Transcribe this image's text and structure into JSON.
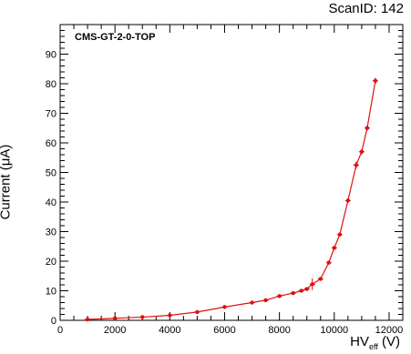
{
  "header": {
    "scan_id": "ScanID: 142"
  },
  "chart_data": {
    "type": "line",
    "title": "",
    "series_label": "CMS-GT-2-0-TOP",
    "xlabel_main": "HV",
    "xlabel_sub": "eff",
    "xlabel_unit": " (V)",
    "ylabel": "Current (μA)",
    "xlim": [
      0,
      12500
    ],
    "ylim": [
      0,
      100
    ],
    "x_ticks": [
      0,
      2000,
      4000,
      6000,
      8000,
      10000,
      12000
    ],
    "y_ticks": [
      0,
      10,
      20,
      30,
      40,
      50,
      60,
      70,
      80,
      90
    ],
    "grid": false,
    "color": "#e01010",
    "series": [
      {
        "x": [
          1000,
          2000,
          3000,
          4000,
          5000,
          6000,
          7000,
          7500,
          8000,
          8500,
          8800,
          9000,
          9200,
          9500,
          9800,
          10000,
          10200,
          10500,
          10800,
          11000,
          11200,
          11500
        ],
        "y": [
          0.3,
          0.7,
          1.1,
          1.7,
          2.8,
          4.5,
          6.0,
          6.8,
          8.2,
          9.2,
          10.0,
          10.6,
          12.2,
          14.0,
          19.5,
          24.5,
          29.0,
          40.5,
          52.5,
          57.0,
          65.0,
          81.0
        ],
        "yerr": [
          0.4,
          0.4,
          0.4,
          0.4,
          0.4,
          0.4,
          0.5,
          0.5,
          0.5,
          0.5,
          0.5,
          0.6,
          2.0,
          0.6,
          0.6,
          0.7,
          0.7,
          0.8,
          1.2,
          0.9,
          0.9,
          1.0
        ]
      }
    ]
  }
}
